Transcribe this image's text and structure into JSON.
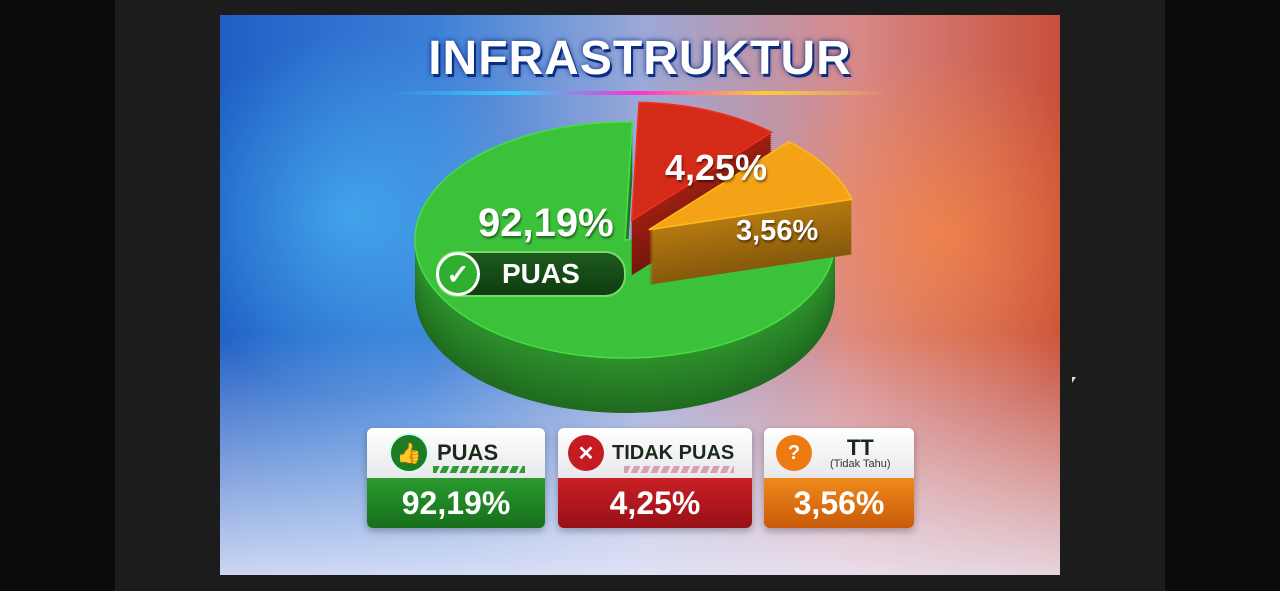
{
  "title": "INFRASTRUKTUR",
  "pie_labels": {
    "puas_pct": "92,19%",
    "puas_badge": "PUAS",
    "tidak_puas_pct": "4,25%",
    "tt_pct": "3,56%"
  },
  "legend": [
    {
      "label": "PUAS",
      "value": "92,19%",
      "icon": "thumbs-up-icon",
      "color": "#1f8a24"
    },
    {
      "label": "TIDAK PUAS",
      "value": "4,25%",
      "icon": "thumbs-down-icon",
      "color": "#b3141a"
    },
    {
      "label": "TT",
      "sublabel": "(Tidak Tahu)",
      "value": "3,56%",
      "icon": "question-icon",
      "color": "#e0700e"
    }
  ],
  "chart_data": {
    "type": "pie",
    "title": "INFRASTRUKTUR",
    "categories": [
      "PUAS",
      "TIDAK PUAS",
      "TT (Tidak Tahu)"
    ],
    "values": [
      92.19,
      4.25,
      3.56
    ],
    "colors": [
      "#3cc23a",
      "#d42a18",
      "#f4a316"
    ],
    "style": "3d-exploded",
    "legend": "bottom"
  }
}
